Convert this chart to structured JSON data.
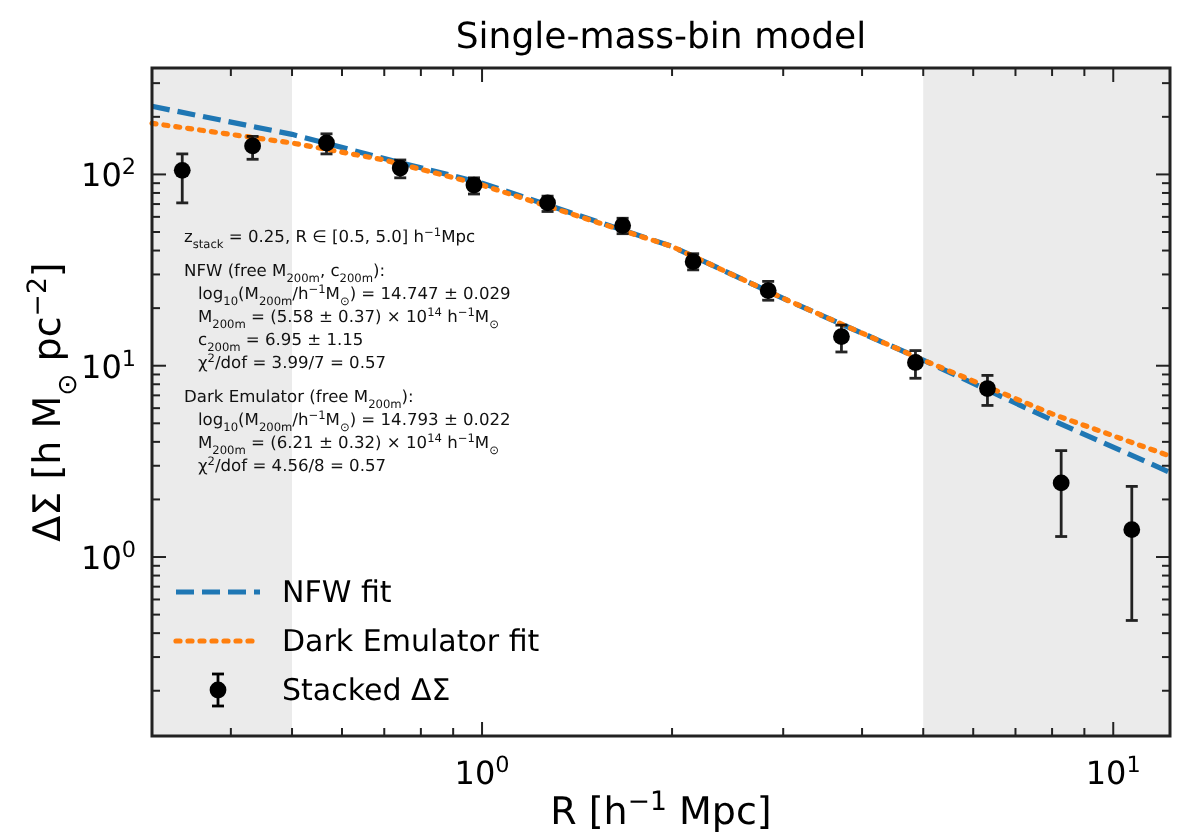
{
  "chart_data": {
    "type": "line",
    "title": "Single-mass-bin model",
    "xlabel": "R [h$^{−1}$ Mpc]",
    "ylabel": "ΔΣ [h M$_{⊙}$ pc$^{−2}$]",
    "log": "xy",
    "xlim": [
      0.3,
      12.3
    ],
    "ylim": [
      0.116,
      360
    ],
    "xticks": [
      {
        "value": 1,
        "label": "10$^{0}$"
      },
      {
        "value": 10,
        "label": "10$^{1}$"
      }
    ],
    "yticks": [
      {
        "value": 1,
        "label": "10$^{0}$"
      },
      {
        "value": 10,
        "label": "10$^{1}$"
      },
      {
        "value": 100,
        "label": "10$^{2}$"
      }
    ],
    "legend": "bottom left",
    "grid": false,
    "bands": [
      {
        "axis": "x",
        "from": 0.3,
        "to": 0.5,
        "color": "#ebebeb"
      },
      {
        "axis": "x",
        "from": 5,
        "to": 12.3,
        "color": "#ebebeb"
      }
    ],
    "series": [
      {
        "name": "NFW fit",
        "color": "#1f77b4",
        "line_style": "dashed",
        "marker": "none",
        "x": [
          0.3,
          0.5,
          0.7,
          1,
          2,
          3,
          5,
          8,
          12.3
        ],
        "values": [
          227,
          162,
          121,
          90,
          42,
          22.5,
          10.7,
          5.2,
          2.77
        ]
      },
      {
        "name": "Dark Emulator fit",
        "color": "#ff7f0e",
        "line_style": "dotted",
        "marker": "none",
        "x": [
          0.3,
          0.5,
          0.7,
          1,
          2,
          3,
          5,
          8,
          12.3
        ],
        "values": [
          185,
          146,
          119,
          88,
          42,
          22.5,
          10.7,
          5.6,
          3.37
        ]
      },
      {
        "name": "Stacked ΔΣ",
        "type": "scatter",
        "color": "#000000",
        "marker": "circle",
        "x": [
          0.335,
          0.433,
          0.567,
          0.742,
          0.971,
          1.27,
          1.67,
          2.16,
          2.84,
          3.71,
          4.86,
          6.32,
          8.27,
          10.7
        ],
        "values": [
          105,
          141,
          146,
          108,
          88,
          71,
          54,
          35,
          24.7,
          14.2,
          10.4,
          7.6,
          2.44,
          1.39
        ],
        "errors": [
          [
            71,
            128
          ],
          [
            120,
            158
          ],
          [
            128,
            163
          ],
          [
            96,
            119
          ],
          [
            79,
            96
          ],
          [
            64,
            77
          ],
          [
            49,
            59
          ],
          [
            31.7,
            38.5
          ],
          [
            22,
            27.6
          ],
          [
            11.8,
            16.3
          ],
          [
            8.6,
            12
          ],
          [
            6.2,
            8.9
          ],
          [
            1.28,
            3.6
          ],
          [
            0.466,
            2.34
          ]
        ]
      }
    ],
    "annotations": [
      "z$_{stack}$ = 0.25, R ∈ [0.5, 5.0] h$^{−1}$Mpc",
      "NFW (free M$_{200m}$, c$_{200m}$):",
      "log$_{10}$(M$_{200m}$/h$^{−1}$M$_{⊙}$) = 14.747 ± 0.029",
      "M$_{200m}$ = (5.58 ± 0.37) × 10$^{14}$ h$^{−1}$M$_{⊙}$",
      "c$_{200m}$ = 6.95 ± 1.15",
      "χ$^{2}$/dof = 3.99/7 = 0.57",
      "Dark Emulator (free M$_{200m}$):",
      "log$_{10}$(M$_{200m}$/h$^{−1}$M$_{⊙}$) = 14.793 ± 0.022",
      "M$_{200m}$ = (6.21 ± 0.32) × 10$^{14}$ h$^{−1}$M$_{⊙}$",
      "χ$^{2}$/dof = 4.56/8 = 0.57"
    ]
  }
}
